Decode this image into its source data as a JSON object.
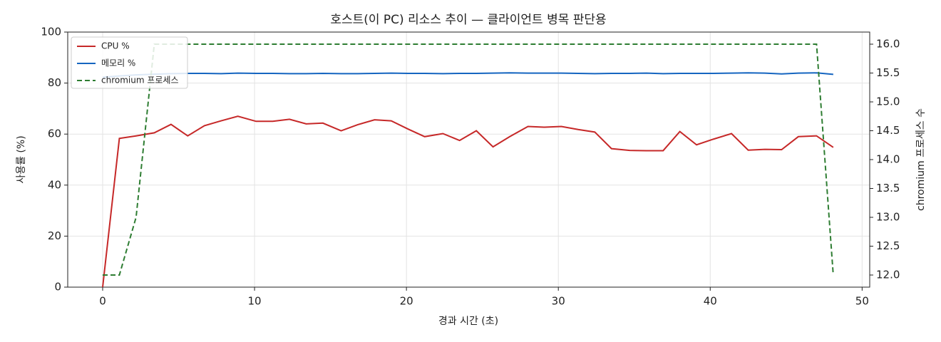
{
  "chart_data": {
    "type": "line",
    "title": "호스트(이 PC) 리소스 추이 — 클라이언트 병목 판단용",
    "xlabel": "경과 시간 (초)",
    "ylabel": "사용률 (%)",
    "y2label": "chromium 프로세스 수",
    "x": [
      0,
      1.1,
      2.2,
      3.4,
      4.5,
      5.6,
      6.7,
      7.8,
      8.9,
      10.1,
      11.2,
      12.3,
      13.4,
      14.5,
      15.7,
      16.8,
      17.9,
      19.0,
      20.1,
      21.2,
      22.4,
      23.5,
      24.6,
      25.7,
      26.8,
      28.0,
      29.1,
      30.2,
      31.3,
      32.4,
      33.5,
      34.7,
      35.8,
      36.9,
      38.0,
      39.1,
      40.2,
      41.4,
      42.5,
      43.6,
      44.7,
      45.8,
      47.0,
      48.1
    ],
    "series": [
      {
        "name": "CPU %",
        "color": "#c62828",
        "linestyle": "solid",
        "values": [
          0,
          58.3,
          59.3,
          60.5,
          63.8,
          59.3,
          63.3,
          65.2,
          67.0,
          65.0,
          65.0,
          65.8,
          64.0,
          64.3,
          61.3,
          63.7,
          65.6,
          65.2,
          62.0,
          59.0,
          60.2,
          57.5,
          61.3,
          55.0,
          59.0,
          63.0,
          62.7,
          63.0,
          61.8,
          60.8,
          54.3,
          53.6,
          53.5,
          53.5,
          61.0,
          55.8,
          58.0,
          60.2,
          53.7,
          54.0,
          53.9,
          59.0,
          59.3,
          54.8
        ]
      },
      {
        "name": "메모리 %",
        "color": "#1565c0",
        "linestyle": "solid",
        "values": [
          82.3,
          82.8,
          83.2,
          83.5,
          83.7,
          83.8,
          83.8,
          83.7,
          83.9,
          83.8,
          83.8,
          83.7,
          83.7,
          83.8,
          83.7,
          83.7,
          83.8,
          83.9,
          83.8,
          83.8,
          83.7,
          83.8,
          83.8,
          83.9,
          84.0,
          83.9,
          83.9,
          83.9,
          83.8,
          83.7,
          83.8,
          83.8,
          83.9,
          83.7,
          83.8,
          83.8,
          83.8,
          83.9,
          84.0,
          83.9,
          83.6,
          83.9,
          84.0,
          83.4
        ]
      },
      {
        "name": "chromium 프로세스",
        "color": "#2e7d32",
        "linestyle": "dashed",
        "axis": "y2",
        "values": [
          12,
          12,
          13,
          16,
          16,
          16,
          16,
          16,
          16,
          16,
          16,
          16,
          16,
          16,
          16,
          16,
          16,
          16,
          16,
          16,
          16,
          16,
          16,
          16,
          16,
          16,
          16,
          16,
          16,
          16,
          16,
          16,
          16,
          16,
          16,
          16,
          16,
          16,
          16,
          16,
          16,
          16,
          16,
          12
        ]
      }
    ],
    "xlim": [
      -2.3,
      50.5
    ],
    "xticks": [
      0,
      10,
      20,
      30,
      40,
      50
    ],
    "ylim": [
      0,
      100
    ],
    "yticks": [
      0,
      20,
      40,
      60,
      80,
      100
    ],
    "y2lim": [
      11.79,
      16.21
    ],
    "y2ticks": [
      {
        "value": 12,
        "label": "12.0"
      },
      12.5,
      {
        "value": 13,
        "label": "13.0"
      },
      13.5,
      {
        "value": 14,
        "label": "14.0"
      },
      14.5,
      {
        "value": 15,
        "label": "15.0"
      },
      15.5,
      {
        "value": 16,
        "label": "16.0"
      }
    ],
    "grid": true,
    "legend": "upper left"
  }
}
